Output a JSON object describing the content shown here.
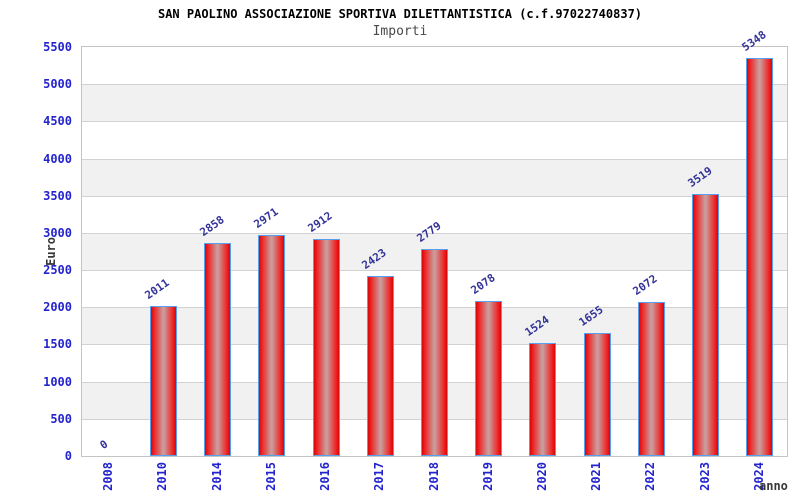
{
  "header": {
    "title": "SAN PAOLINO ASSOCIAZIONE SPORTIVA DILETTANTISTICA (c.f.97022740837)",
    "subtitle": "Importi"
  },
  "chart_data": {
    "type": "bar",
    "title": "SAN PAOLINO ASSOCIAZIONE SPORTIVA DILETTANTISTICA (c.f.97022740837)",
    "subtitle": "Importi",
    "categories": [
      "2008",
      "2010",
      "2014",
      "2015",
      "2016",
      "2017",
      "2018",
      "2019",
      "2020",
      "2021",
      "2022",
      "2023",
      "2024"
    ],
    "values": [
      0,
      2011,
      2858,
      2971,
      2912,
      2423,
      2779,
      2078,
      1524,
      1655,
      2072,
      3519,
      5348
    ],
    "xlabel": "anno",
    "ylabel": "Euro",
    "ylim": [
      0,
      5500
    ],
    "ytick_step": 500,
    "grid": true,
    "band_fill": "#f1f1f1",
    "gridline_color": "#d2d2d2",
    "tick_label_color": "#2424cf",
    "value_label_color": "#333399",
    "bar_edge_color": "#d40707",
    "bar_center_color": "#cb9c9c",
    "bar_border_color": "#57a0ef",
    "legend": null
  }
}
